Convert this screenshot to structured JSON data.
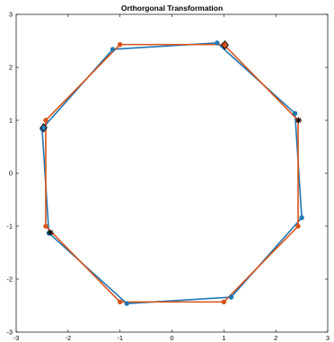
{
  "chart_data": {
    "type": "line",
    "title": "Orthorgonal Transformation",
    "xlabel": "",
    "ylabel": "",
    "xlim": [
      -3,
      3
    ],
    "ylim": [
      -3,
      3
    ],
    "xticks": [
      -3,
      -2,
      -1,
      0,
      1,
      2,
      3
    ],
    "yticks": [
      -3,
      -2,
      -1,
      0,
      1,
      2,
      3
    ],
    "grid": false,
    "box": true,
    "series": [
      {
        "color": "#1f77b4",
        "points": [
          [
            2.37,
            1.13
          ],
          [
            2.5,
            -0.84
          ],
          [
            1.14,
            -2.34
          ],
          [
            -0.87,
            -2.46
          ],
          [
            -2.37,
            -1.13
          ],
          [
            -2.5,
            0.84
          ],
          [
            -1.14,
            2.34
          ],
          [
            0.87,
            2.46
          ],
          [
            2.37,
            1.13
          ]
        ]
      },
      {
        "color": "#d95319",
        "points": [
          [
            2.43,
            1.0
          ],
          [
            2.43,
            -1.0
          ],
          [
            1.0,
            -2.43
          ],
          [
            -1.0,
            -2.43
          ],
          [
            -2.43,
            -1.0
          ],
          [
            -2.43,
            1.0
          ],
          [
            -1.0,
            2.43
          ],
          [
            1.0,
            2.43
          ],
          [
            2.43,
            1.0
          ]
        ]
      }
    ],
    "highlights": [
      {
        "shape": "diamond",
        "fill": "#2d7db8",
        "x": -2.47,
        "y": 0.86
      },
      {
        "shape": "diamond",
        "fill": "#d95319",
        "x": 1.02,
        "y": 2.42
      },
      {
        "shape": "asterisk",
        "x": 2.44,
        "y": 1.0
      },
      {
        "shape": "asterisk",
        "x": -2.34,
        "y": -1.12
      }
    ]
  }
}
